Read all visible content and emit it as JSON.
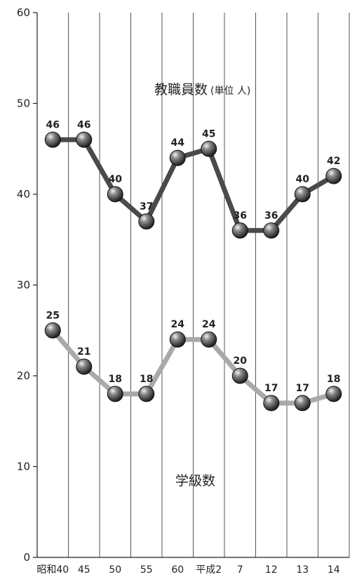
{
  "chart_data": {
    "type": "line",
    "categories": [
      "昭和40",
      "45",
      "50",
      "55",
      "60",
      "平成2",
      "7",
      "12",
      "13",
      "14"
    ],
    "ylim": [
      0,
      60
    ],
    "yticks": [
      0,
      10,
      20,
      30,
      40,
      50,
      60
    ],
    "grid": "vertical lines at each category",
    "series": [
      {
        "name": "教職員数",
        "unit": "(単位 人)",
        "color": "#4a4a4a",
        "values": [
          46,
          46,
          40,
          37,
          44,
          45,
          36,
          36,
          40,
          42
        ]
      },
      {
        "name": "学級数",
        "color": "#a9a9a9",
        "values": [
          25,
          21,
          18,
          18,
          24,
          24,
          20,
          17,
          17,
          18
        ]
      }
    ]
  }
}
